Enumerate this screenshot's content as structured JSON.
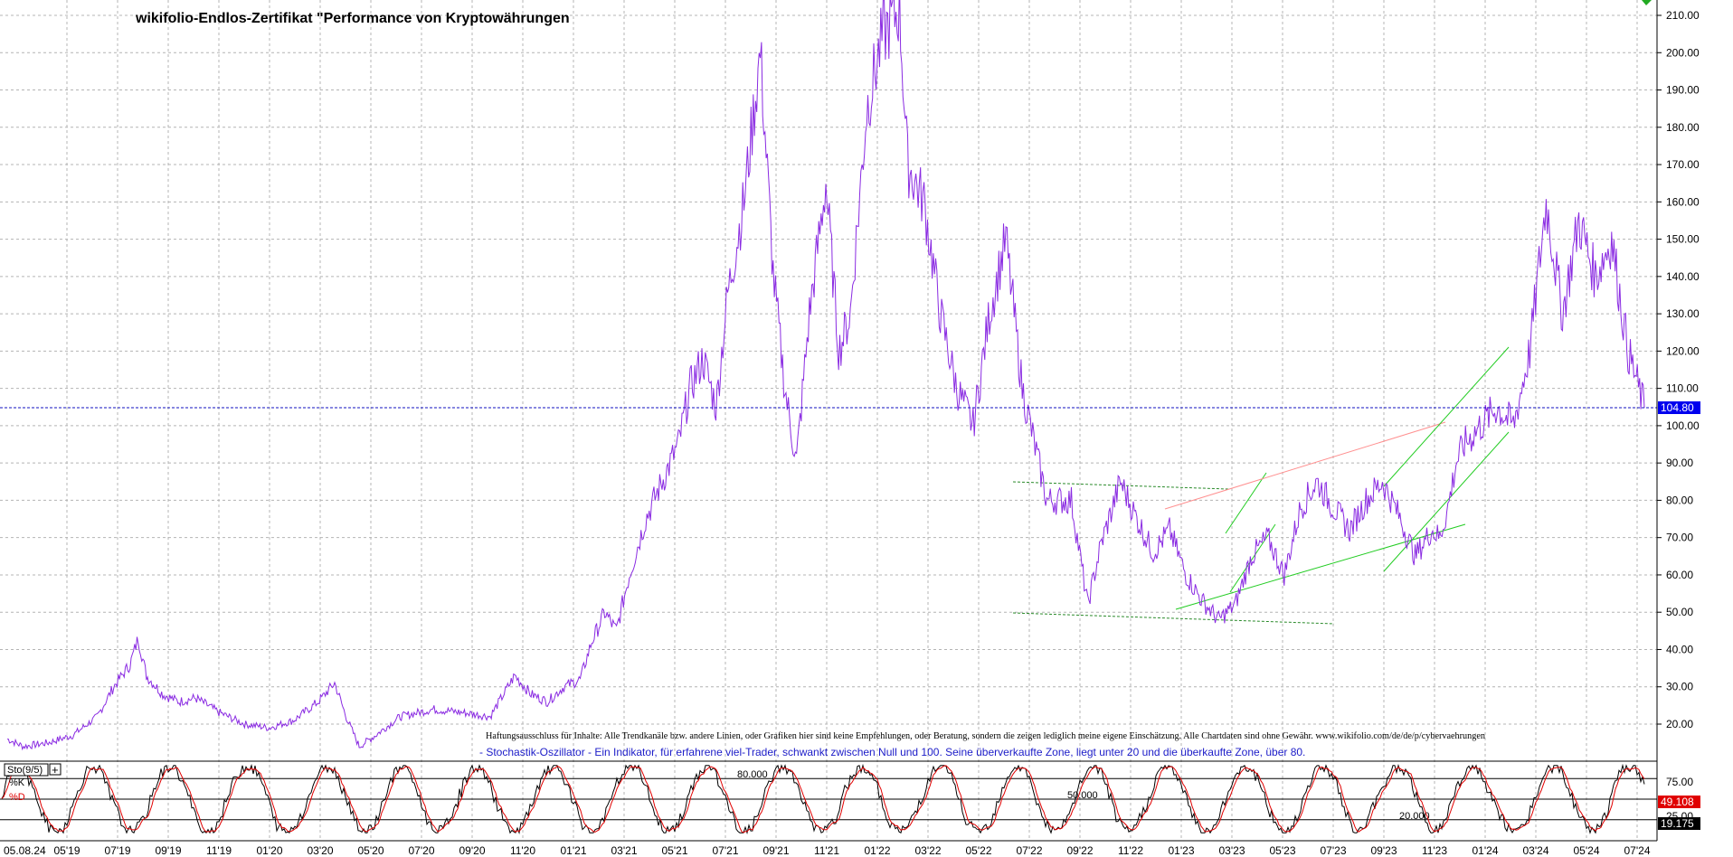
{
  "chart_data": [
    {
      "type": "line",
      "title": "wikifolio-Endlos-Zertifikat \"Performance von Kryptowährungen",
      "ylim": [
        10,
        213
      ],
      "y_ticks": [
        "20.00",
        "30.00",
        "40.00",
        "50.00",
        "60.00",
        "70.00",
        "80.00",
        "90.00",
        "100.00",
        "110.00",
        "120.00",
        "130.00",
        "140.00",
        "150.00",
        "160.00",
        "170.00",
        "180.00",
        "190.00",
        "200.00",
        "210.00"
      ],
      "x_ticks": [
        "05.08.24",
        "05'19",
        "07'19",
        "09'19",
        "11'19",
        "01'20",
        "03'20",
        "05'20",
        "07'20",
        "09'20",
        "11'20",
        "01'21",
        "03'21",
        "05'21",
        "07'21",
        "09'21",
        "11'21",
        "01'22",
        "03'22",
        "05'22",
        "07'22",
        "09'22",
        "11'22",
        "01'23",
        "03'23",
        "05'23",
        "07'23",
        "09'23",
        "11'23",
        "01'24",
        "03'24",
        "05'24",
        "07'24"
      ],
      "grid": true,
      "series": [
        {
          "color": "#8a2be2",
          "x": [
            0,
            0.01,
            0.025,
            0.04,
            0.055,
            0.065,
            0.075,
            0.08,
            0.085,
            0.095,
            0.105,
            0.115,
            0.13,
            0.145,
            0.16,
            0.175,
            0.19,
            0.2,
            0.207,
            0.215,
            0.225,
            0.24,
            0.26,
            0.28,
            0.295,
            0.31,
            0.32,
            0.33,
            0.34,
            0.35,
            0.357,
            0.365,
            0.372,
            0.38,
            0.39,
            0.4,
            0.41,
            0.417,
            0.425,
            0.433,
            0.44,
            0.45,
            0.46,
            0.468,
            0.475,
            0.482,
            0.49,
            0.5,
            0.508,
            0.515,
            0.525,
            0.535,
            0.545,
            0.55,
            0.56,
            0.57,
            0.58,
            0.59,
            0.6,
            0.61,
            0.62,
            0.635,
            0.65,
            0.66,
            0.668,
            0.68,
            0.69,
            0.7,
            0.71,
            0.72,
            0.73,
            0.74,
            0.75,
            0.76,
            0.77,
            0.78,
            0.79,
            0.8,
            0.81,
            0.82,
            0.83,
            0.84,
            0.85,
            0.86,
            0.87,
            0.875,
            0.88,
            0.885,
            0.89,
            0.9,
            0.91,
            0.92,
            0.93,
            0.94,
            0.945,
            0.95,
            0.96,
            0.97,
            0.98,
            0.99,
            1.0
          ],
          "values": [
            16,
            14,
            15,
            17,
            22,
            30,
            36,
            43,
            33,
            28,
            26,
            27,
            23,
            20,
            19,
            21,
            26,
            31,
            22,
            14,
            17,
            22,
            24,
            23,
            22,
            33,
            28,
            26,
            30,
            32,
            42,
            50,
            45,
            60,
            75,
            85,
            95,
            110,
            118,
            105,
            135,
            160,
            200,
            140,
            110,
            90,
            130,
            165,
            120,
            130,
            185,
            205,
            212,
            170,
            160,
            130,
            110,
            100,
            130,
            150,
            110,
            80,
            80,
            52,
            68,
            85,
            75,
            66,
            72,
            60,
            53,
            48,
            52,
            65,
            70,
            60,
            78,
            85,
            78,
            72,
            80,
            85,
            76,
            65,
            72,
            70,
            78,
            90,
            95,
            100,
            105,
            100,
            120,
            160,
            145,
            130,
            155,
            140,
            150,
            120,
            104.8
          ]
        }
      ],
      "last_value_label": "104.80",
      "last_value": 104.8
    },
    {
      "type": "line",
      "title": "Sto(9/5)",
      "ylim": [
        0,
        100
      ],
      "y_ticks": [
        "75.00",
        "25.00"
      ],
      "levels": [
        {
          "label": "80.000",
          "value": 80
        },
        {
          "label": "50.000",
          "value": 50
        },
        {
          "label": "20.000",
          "value": 20
        }
      ],
      "series": [
        {
          "name": "%K",
          "color": "#000000"
        },
        {
          "name": "%D",
          "color": "#e00000"
        }
      ],
      "last_values": [
        {
          "label": "49.108",
          "color": "#e00000"
        },
        {
          "label": "19.175",
          "color": "#000000"
        }
      ]
    }
  ],
  "annotations": {
    "disclaimer": "Haftungsausschluss für Inhalte: Alle Trendkanäle bzw. andere Linien, oder Grafiken hier sind keine Empfehlungen, oder Beratung, sondern die zeigen lediglich meine eigene Einschätzung. Alle Chartdaten sind ohne Gewähr. www.wikifolio.com/de/de/p/cybervaehrungen",
    "oscillator_note": "- Stochastik-Oszillator - Ein Indikator, für erfahrene viel-Trader, schwankt zwischen Null und 100. Seine überverkaufte Zone, liegt unter 20 und die überkaufte Zone, über 80."
  }
}
